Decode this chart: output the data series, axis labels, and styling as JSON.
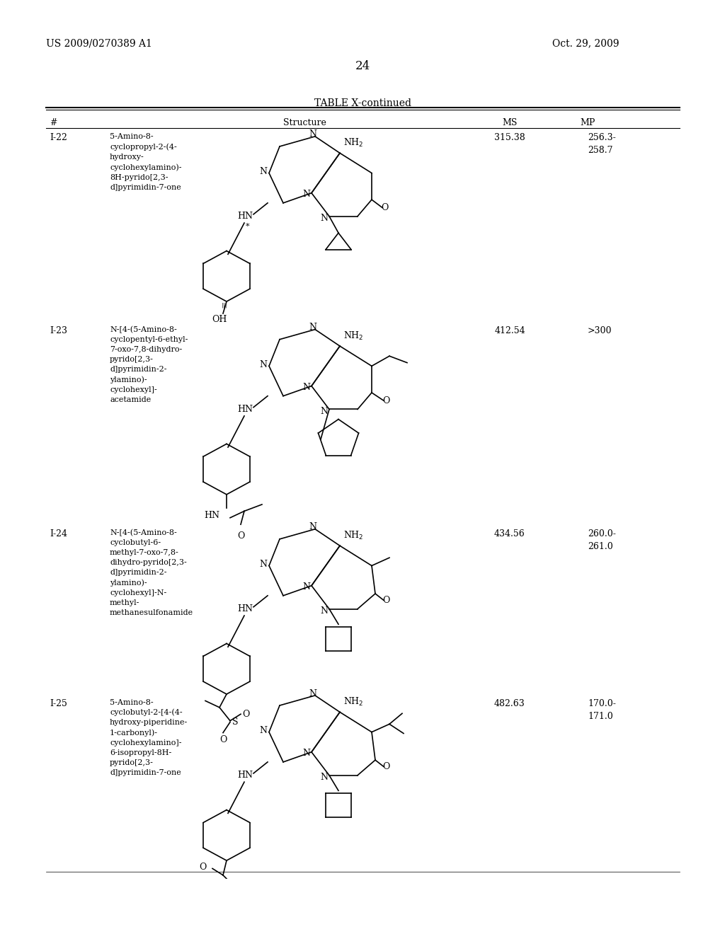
{
  "page_number": "24",
  "patent_number": "US 2009/0270389 A1",
  "patent_date": "Oct. 29, 2009",
  "table_title": "TABLE X-continued",
  "columns": [
    "#",
    "Structure",
    "MS",
    "MP"
  ],
  "rows": [
    {
      "id": "I-22",
      "name": "5-Amino-8-\ncyclopropyl-2-(4-\nhydroxy-\ncyclohexylamino)-\n8H-pyrido[2,3-\nd]pyrimidin-7-one",
      "ms": "315.38",
      "mp": "256.3-\n258.7"
    },
    {
      "id": "I-23",
      "name": "N-[4-(5-Amino-8-\ncyclopentyl-6-ethyl-\n7-oxo-7,8-dihydro-\npyrido[2,3-\nd]pyrimidin-2-\nylamino)-\ncyclohexyl]-\nacetamide",
      "ms": "412.54",
      "mp": ">300"
    },
    {
      "id": "I-24",
      "name": "N-[4-(5-Amino-8-\ncyclobutyl-6-\nmethyl-7-oxo-7,8-\ndihydro-pyrido[2,3-\nd]pyrimidin-2-\nylamino)-\ncyclohexyl]-N-\nmethyl-\nmethanesulfonamide",
      "ms": "434.56",
      "mp": "260.0-\n261.0"
    },
    {
      "id": "I-25",
      "name": "5-Amino-8-\ncyclobutyl-2-[4-(4-\nhydroxy-piperidine-\n1-carbonyl)-\ncyclohexylamino]-\n6-isopropyl-8H-\npyrido[2,3-\nd]pyrimidin-7-one",
      "ms": "482.63",
      "mp": "170.0-\n171.0"
    }
  ],
  "background_color": "#ffffff",
  "text_color": "#000000",
  "font_size_header": 9,
  "font_size_body": 8,
  "font_size_page": 11
}
